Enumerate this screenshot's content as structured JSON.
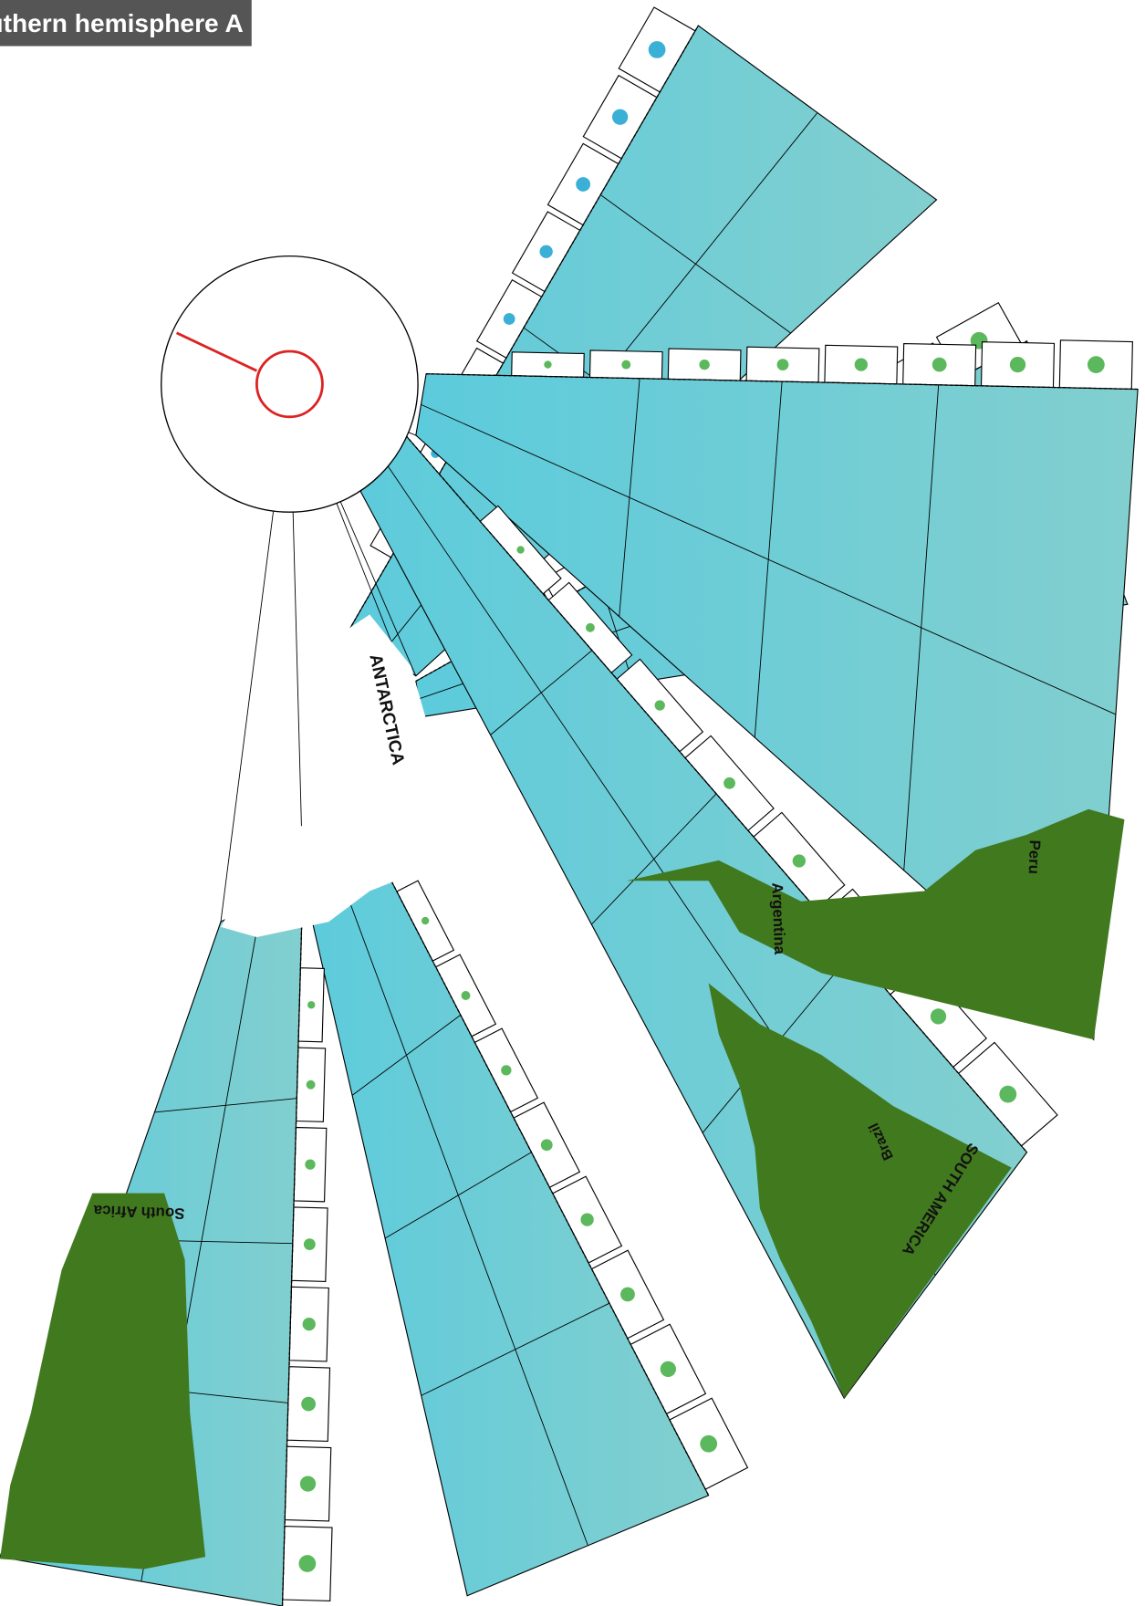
{
  "header": {
    "title": "Southern hemisphere A"
  },
  "labels": {
    "antarctica": "ANTARCTICA",
    "argentina": "Argentina",
    "peru": "Peru",
    "brazil": "Brazil",
    "south_america": "SOUTH AMERICA",
    "south_africa": "South Africa"
  }
}
